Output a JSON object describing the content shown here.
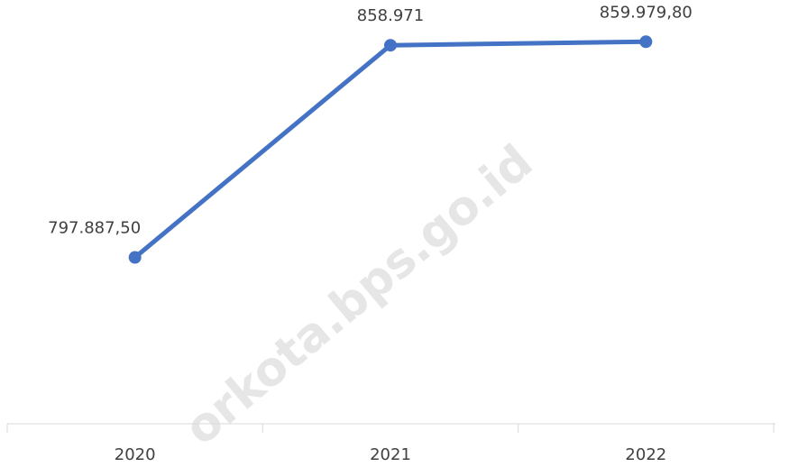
{
  "chart_data": {
    "type": "line",
    "categories": [
      "2020",
      "2021",
      "2022"
    ],
    "series": [
      {
        "color": "#4472c4",
        "values": [
          797887.5,
          858971,
          859979.8
        ],
        "value_labels": [
          "797.887,50",
          "858.971",
          "859.979,80"
        ]
      }
    ],
    "ylim": [
      750000,
      872000
    ],
    "watermark": "orkota.bps.go.id"
  }
}
